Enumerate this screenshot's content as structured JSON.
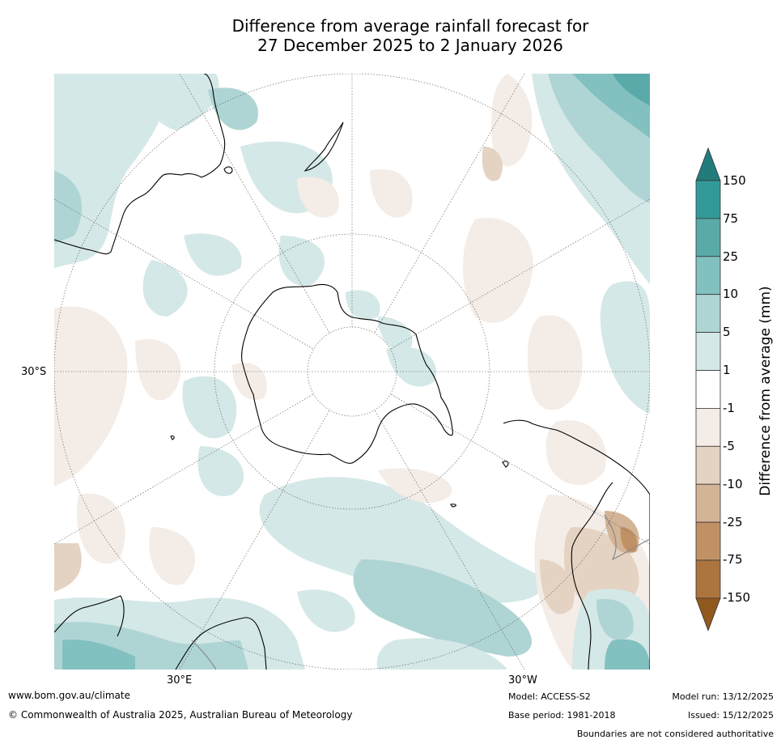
{
  "title": {
    "line1": "Difference from average rainfall forecast for",
    "line2": "27 December 2025 to 2 January 2026"
  },
  "map": {
    "projection": "south-polar",
    "lat_label": "30°S",
    "lon_labels": {
      "east": "30°E",
      "west": "30°W"
    }
  },
  "colorbar": {
    "label": "Difference from average (mm)",
    "ticks": [
      "150",
      "75",
      "25",
      "10",
      "5",
      "1",
      "-1",
      "-5",
      "-10",
      "-25",
      "-75",
      "-150"
    ],
    "colors": {
      "gt150": "#237c7c",
      "75_150": "#319a99",
      "25_75": "#5aaaa9",
      "10_25": "#82c1c0",
      "5_10": "#aed5d4",
      "1_5": "#d4e8e7",
      "neutral": "#ffffff",
      "m5_m1": "#f4ece6",
      "m10_m5": "#e4d3c2",
      "m25_m10": "#d4b497",
      "m75_m25": "#c09164",
      "m150_m75": "#ac7540",
      "lt_m150": "#92591f"
    }
  },
  "footer": {
    "website": "www.bom.gov.au/climate",
    "copyright": "© Commonwealth of Australia 2025, Australian Bureau of Meteorology",
    "model": "Model: ACCESS-S2",
    "base_period": "Base period: 1981-2018",
    "model_run": "Model run: 13/12/2025",
    "issued": "Issued: 15/12/2025",
    "disclaimer": "Boundaries are not considered authoritative"
  }
}
